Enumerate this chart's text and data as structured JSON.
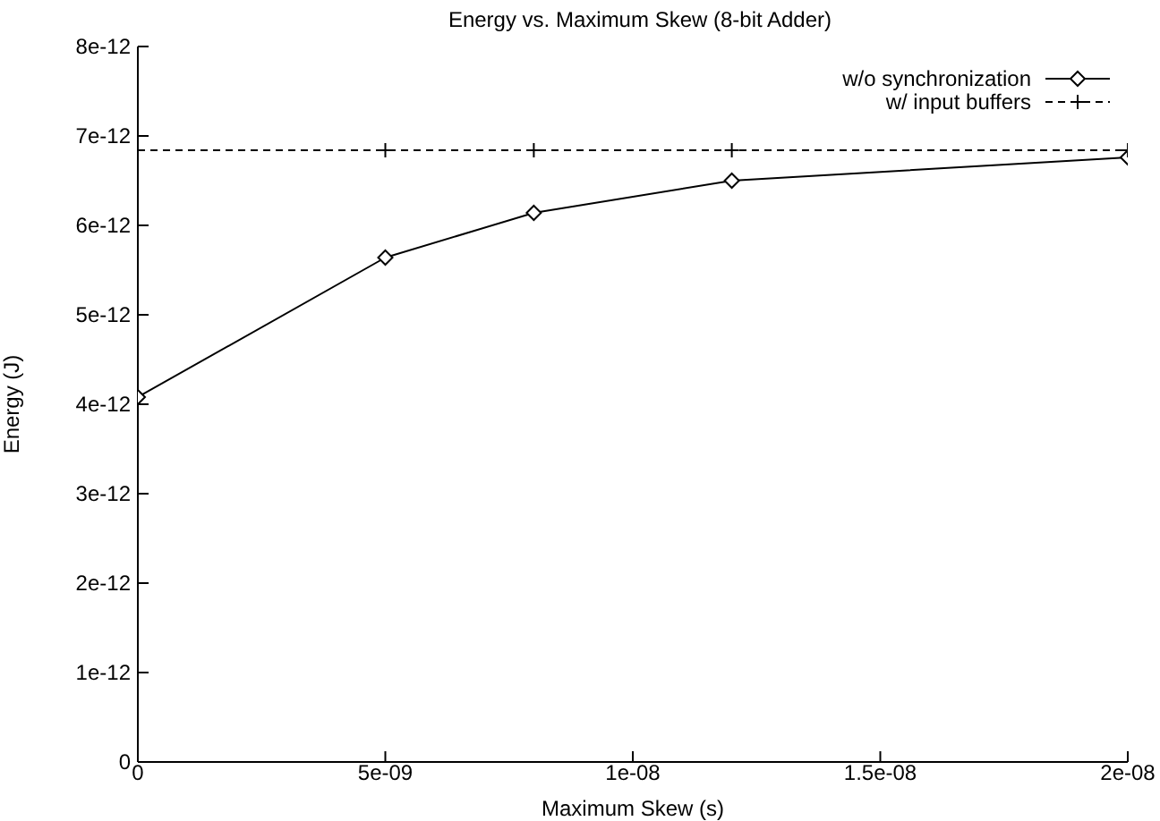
{
  "chart_data": {
    "type": "line",
    "title": "Energy vs. Maximum Skew  (8-bit Adder)",
    "xlabel": "Maximum Skew (s)",
    "ylabel": "Energy (J)",
    "x": [
      0,
      5e-09,
      8e-09,
      1.2e-08,
      2e-08
    ],
    "series": [
      {
        "name": "w/o synchronization",
        "color": "#000000",
        "marker": "diamond",
        "line_style": "solid",
        "values": [
          4.08e-12,
          5.64e-12,
          6.14e-12,
          6.5e-12,
          6.76e-12
        ]
      },
      {
        "name": "w/ input buffers",
        "color": "#000000",
        "marker": "cross",
        "line_style": "dashed",
        "values": [
          6.84e-12,
          6.84e-12,
          6.84e-12,
          6.84e-12,
          6.84e-12
        ]
      }
    ],
    "xlim": [
      0,
      2e-08
    ],
    "xticks": [
      0,
      {
        "value": 5e-09,
        "label": "5e-09"
      },
      {
        "value": 1e-08,
        "label": "1e-08"
      },
      {
        "value": 1.5e-08,
        "label": "1.5e-08"
      },
      {
        "value": 2e-08,
        "label": "2e-08"
      }
    ],
    "ylim": [
      0,
      8e-12
    ],
    "yticks": [
      0,
      {
        "value": 1e-12,
        "label": "1e-12"
      },
      {
        "value": 2e-12,
        "label": "2e-12"
      },
      {
        "value": 3e-12,
        "label": "3e-12"
      },
      {
        "value": 4e-12,
        "label": "4e-12"
      },
      {
        "value": 5e-12,
        "label": "5e-12"
      },
      {
        "value": 6e-12,
        "label": "6e-12"
      },
      {
        "value": 7e-12,
        "label": "7e-12"
      },
      {
        "value": 8e-12,
        "label": "8e-12"
      }
    ],
    "grid": false,
    "legend": "top right"
  }
}
